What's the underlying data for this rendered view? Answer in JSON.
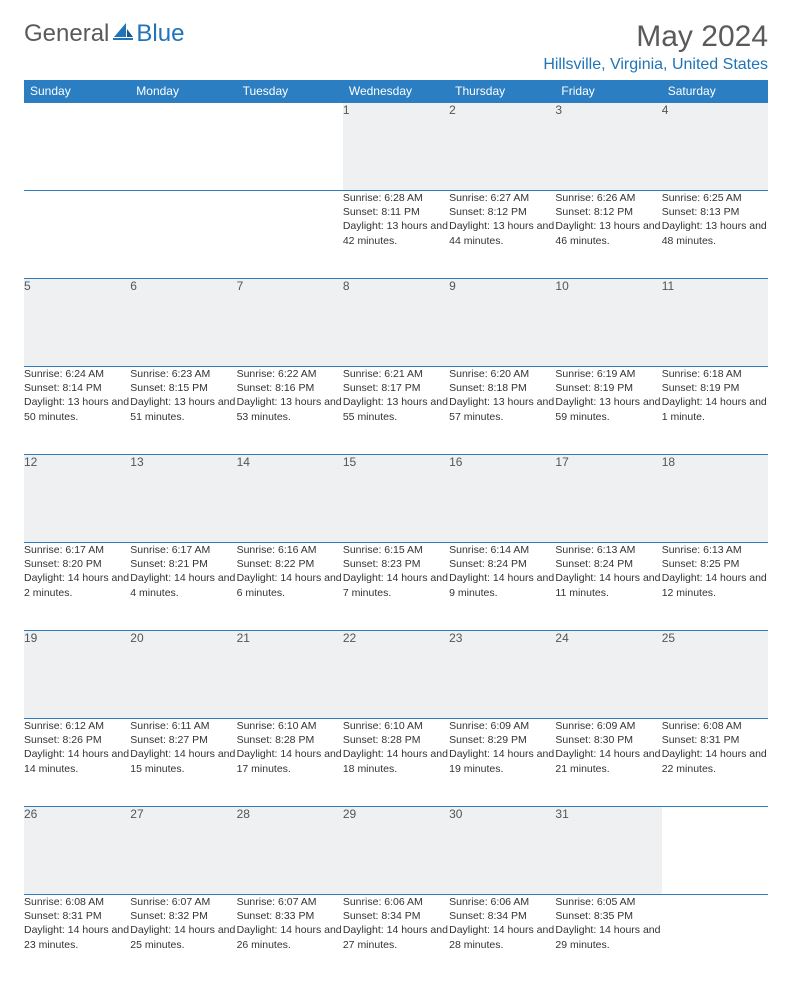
{
  "logo": {
    "general": "General",
    "blue": "Blue"
  },
  "title": "May 2024",
  "location": "Hillsville, Virginia, United States",
  "columns": [
    "Sunday",
    "Monday",
    "Tuesday",
    "Wednesday",
    "Thursday",
    "Friday",
    "Saturday"
  ],
  "colors": {
    "header_bg": "#2b7ec2",
    "header_text": "#ffffff",
    "daynum_bg": "#eef0f1",
    "border": "#2b7ec2",
    "logo_general": "#5a5a5a",
    "logo_blue": "#2174b8",
    "title_color": "#5a5a5a",
    "location_color": "#2174b8",
    "body_text": "#333333"
  },
  "weeks": [
    [
      null,
      null,
      null,
      {
        "n": "1",
        "sr": "6:28 AM",
        "ss": "8:11 PM",
        "dl": "13 hours and 42 minutes."
      },
      {
        "n": "2",
        "sr": "6:27 AM",
        "ss": "8:12 PM",
        "dl": "13 hours and 44 minutes."
      },
      {
        "n": "3",
        "sr": "6:26 AM",
        "ss": "8:12 PM",
        "dl": "13 hours and 46 minutes."
      },
      {
        "n": "4",
        "sr": "6:25 AM",
        "ss": "8:13 PM",
        "dl": "13 hours and 48 minutes."
      }
    ],
    [
      {
        "n": "5",
        "sr": "6:24 AM",
        "ss": "8:14 PM",
        "dl": "13 hours and 50 minutes."
      },
      {
        "n": "6",
        "sr": "6:23 AM",
        "ss": "8:15 PM",
        "dl": "13 hours and 51 minutes."
      },
      {
        "n": "7",
        "sr": "6:22 AM",
        "ss": "8:16 PM",
        "dl": "13 hours and 53 minutes."
      },
      {
        "n": "8",
        "sr": "6:21 AM",
        "ss": "8:17 PM",
        "dl": "13 hours and 55 minutes."
      },
      {
        "n": "9",
        "sr": "6:20 AM",
        "ss": "8:18 PM",
        "dl": "13 hours and 57 minutes."
      },
      {
        "n": "10",
        "sr": "6:19 AM",
        "ss": "8:19 PM",
        "dl": "13 hours and 59 minutes."
      },
      {
        "n": "11",
        "sr": "6:18 AM",
        "ss": "8:19 PM",
        "dl": "14 hours and 1 minute."
      }
    ],
    [
      {
        "n": "12",
        "sr": "6:17 AM",
        "ss": "8:20 PM",
        "dl": "14 hours and 2 minutes."
      },
      {
        "n": "13",
        "sr": "6:17 AM",
        "ss": "8:21 PM",
        "dl": "14 hours and 4 minutes."
      },
      {
        "n": "14",
        "sr": "6:16 AM",
        "ss": "8:22 PM",
        "dl": "14 hours and 6 minutes."
      },
      {
        "n": "15",
        "sr": "6:15 AM",
        "ss": "8:23 PM",
        "dl": "14 hours and 7 minutes."
      },
      {
        "n": "16",
        "sr": "6:14 AM",
        "ss": "8:24 PM",
        "dl": "14 hours and 9 minutes."
      },
      {
        "n": "17",
        "sr": "6:13 AM",
        "ss": "8:24 PM",
        "dl": "14 hours and 11 minutes."
      },
      {
        "n": "18",
        "sr": "6:13 AM",
        "ss": "8:25 PM",
        "dl": "14 hours and 12 minutes."
      }
    ],
    [
      {
        "n": "19",
        "sr": "6:12 AM",
        "ss": "8:26 PM",
        "dl": "14 hours and 14 minutes."
      },
      {
        "n": "20",
        "sr": "6:11 AM",
        "ss": "8:27 PM",
        "dl": "14 hours and 15 minutes."
      },
      {
        "n": "21",
        "sr": "6:10 AM",
        "ss": "8:28 PM",
        "dl": "14 hours and 17 minutes."
      },
      {
        "n": "22",
        "sr": "6:10 AM",
        "ss": "8:28 PM",
        "dl": "14 hours and 18 minutes."
      },
      {
        "n": "23",
        "sr": "6:09 AM",
        "ss": "8:29 PM",
        "dl": "14 hours and 19 minutes."
      },
      {
        "n": "24",
        "sr": "6:09 AM",
        "ss": "8:30 PM",
        "dl": "14 hours and 21 minutes."
      },
      {
        "n": "25",
        "sr": "6:08 AM",
        "ss": "8:31 PM",
        "dl": "14 hours and 22 minutes."
      }
    ],
    [
      {
        "n": "26",
        "sr": "6:08 AM",
        "ss": "8:31 PM",
        "dl": "14 hours and 23 minutes."
      },
      {
        "n": "27",
        "sr": "6:07 AM",
        "ss": "8:32 PM",
        "dl": "14 hours and 25 minutes."
      },
      {
        "n": "28",
        "sr": "6:07 AM",
        "ss": "8:33 PM",
        "dl": "14 hours and 26 minutes."
      },
      {
        "n": "29",
        "sr": "6:06 AM",
        "ss": "8:34 PM",
        "dl": "14 hours and 27 minutes."
      },
      {
        "n": "30",
        "sr": "6:06 AM",
        "ss": "8:34 PM",
        "dl": "14 hours and 28 minutes."
      },
      {
        "n": "31",
        "sr": "6:05 AM",
        "ss": "8:35 PM",
        "dl": "14 hours and 29 minutes."
      },
      null
    ]
  ],
  "labels": {
    "sunrise": "Sunrise:",
    "sunset": "Sunset:",
    "daylight": "Daylight:"
  }
}
